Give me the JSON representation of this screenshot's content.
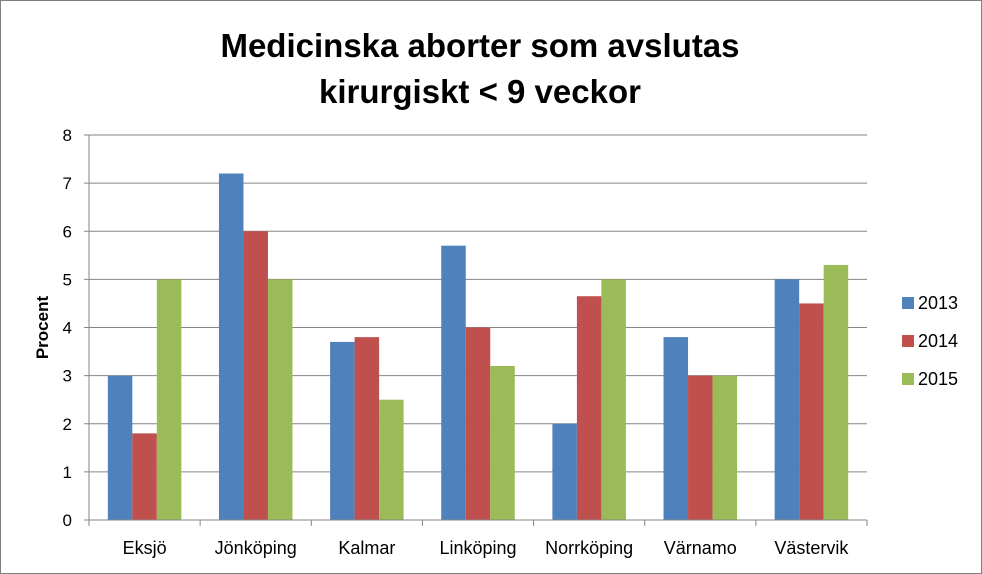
{
  "chart_data": {
    "type": "bar",
    "title_line1": "Medicinska aborter som avslutas",
    "title_line2": "kirurgiskt < 9 veckor",
    "xlabel": "",
    "ylabel": "Procent",
    "ylim": [
      0,
      8
    ],
    "yticks": [
      "0",
      "1",
      "2",
      "3",
      "4",
      "5",
      "6",
      "7",
      "8"
    ],
    "grid": true,
    "legend_position": "right",
    "categories": [
      "Eksjö",
      "Jönköping",
      "Kalmar",
      "Linköping",
      "Norrköping",
      "Värnamo",
      "Västervik"
    ],
    "series": [
      {
        "name": "2013",
        "color": "#4f81bd",
        "values": [
          3,
          7.2,
          3.7,
          5.7,
          2,
          3.8,
          5
        ]
      },
      {
        "name": "2014",
        "color": "#c0504d",
        "values": [
          1.8,
          6,
          3.8,
          4,
          4.65,
          3,
          4.5
        ]
      },
      {
        "name": "2015",
        "color": "#9bbb59",
        "values": [
          5,
          5,
          2.5,
          3.2,
          5,
          3,
          5.3
        ]
      }
    ]
  }
}
